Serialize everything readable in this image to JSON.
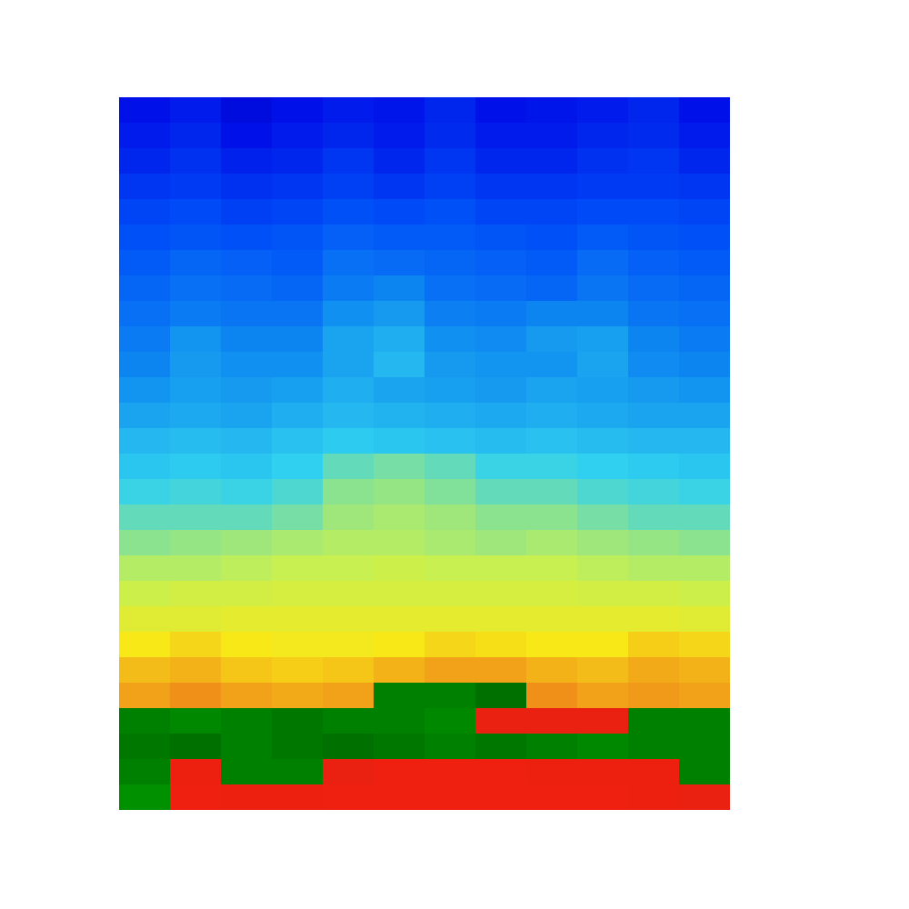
{
  "chart_data": {
    "type": "heatmap",
    "tick_labels": false,
    "zlim": [
      0,
      100
    ],
    "cells": [
      [
        8,
        10,
        6,
        8,
        10,
        9,
        12,
        8,
        9,
        10,
        12,
        8
      ],
      [
        10,
        12,
        8,
        10,
        12,
        10,
        13,
        10,
        10,
        12,
        13,
        10
      ],
      [
        12,
        14,
        11,
        12,
        15,
        12,
        15,
        12,
        12,
        14,
        15,
        12
      ],
      [
        15,
        16,
        14,
        15,
        17,
        15,
        17,
        15,
        15,
        16,
        16,
        15
      ],
      [
        18,
        19,
        17,
        18,
        20,
        19,
        20,
        18,
        18,
        19,
        19,
        18
      ],
      [
        20,
        21,
        20,
        21,
        23,
        22,
        22,
        21,
        20,
        22,
        21,
        20
      ],
      [
        22,
        24,
        23,
        22,
        26,
        25,
        24,
        23,
        22,
        25,
        23,
        22
      ],
      [
        24,
        26,
        25,
        24,
        28,
        30,
        26,
        25,
        24,
        27,
        25,
        24
      ],
      [
        26,
        28,
        27,
        27,
        32,
        34,
        29,
        28,
        30,
        30,
        27,
        26
      ],
      [
        28,
        33,
        30,
        30,
        36,
        38,
        32,
        31,
        34,
        35,
        30,
        28
      ],
      [
        30,
        34,
        32,
        32,
        36,
        40,
        34,
        33,
        33,
        36,
        31,
        30
      ],
      [
        33,
        35,
        34,
        35,
        38,
        36,
        35,
        34,
        36,
        35,
        34,
        33
      ],
      [
        36,
        37,
        36,
        38,
        40,
        39,
        38,
        37,
        38,
        37,
        36,
        36
      ],
      [
        40,
        41,
        40,
        42,
        44,
        43,
        42,
        41,
        42,
        41,
        40,
        40
      ],
      [
        43,
        44,
        43,
        45,
        50,
        52,
        50,
        46,
        46,
        45,
        44,
        43
      ],
      [
        46,
        47,
        46,
        48,
        54,
        55,
        53,
        50,
        50,
        48,
        47,
        46
      ],
      [
        50,
        50,
        50,
        52,
        56,
        57,
        56,
        54,
        54,
        52,
        50,
        50
      ],
      [
        54,
        55,
        56,
        57,
        58,
        58,
        57,
        56,
        57,
        56,
        55,
        54
      ],
      [
        58,
        58,
        59,
        60,
        60,
        61,
        60,
        60,
        60,
        59,
        58,
        58
      ],
      [
        61,
        62,
        62,
        63,
        63,
        63,
        63,
        63,
        63,
        62,
        62,
        61
      ],
      [
        65,
        65,
        66,
        66,
        66,
        66,
        66,
        66,
        66,
        66,
        66,
        65
      ],
      [
        70,
        72,
        70,
        69,
        69,
        70,
        72,
        71,
        70,
        70,
        73,
        72
      ],
      [
        75,
        76,
        74,
        73,
        74,
        76,
        78,
        78,
        76,
        75,
        77,
        76
      ],
      [
        78,
        80,
        78,
        77,
        78,
        90,
        90,
        88,
        80,
        78,
        79,
        78
      ],
      [
        90,
        91,
        90,
        89,
        90,
        90,
        91,
        98,
        98,
        98,
        90,
        90
      ],
      [
        89,
        88,
        90,
        89,
        88,
        89,
        90,
        89,
        90,
        91,
        90,
        90
      ],
      [
        90,
        99,
        90,
        90,
        98,
        100,
        100,
        100,
        99,
        99,
        99,
        90
      ],
      [
        92,
        100,
        99,
        99,
        100,
        100,
        100,
        100,
        100,
        100,
        99,
        98
      ]
    ]
  }
}
